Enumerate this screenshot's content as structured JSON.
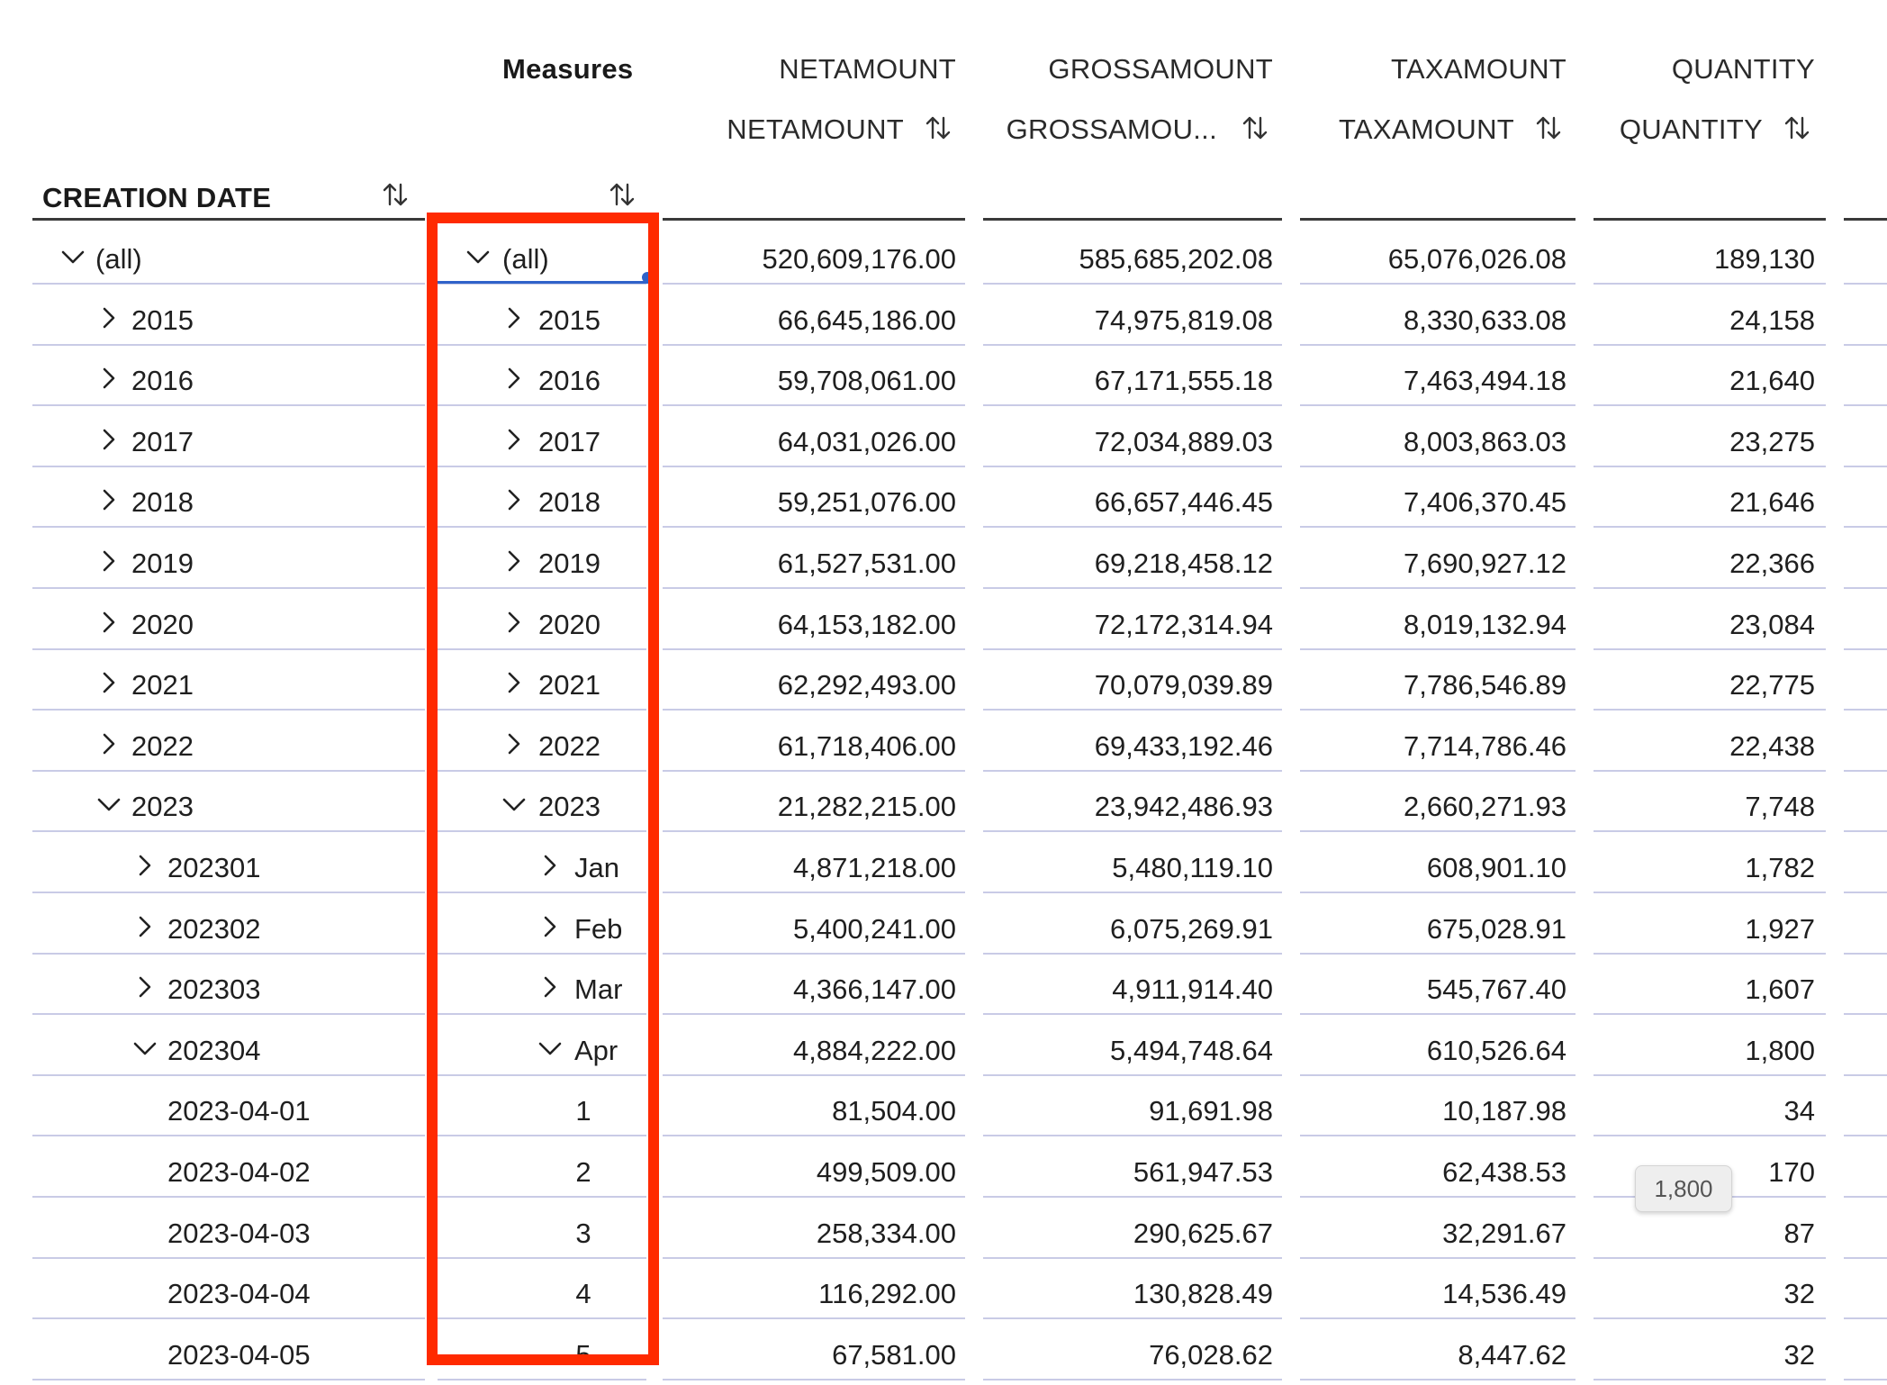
{
  "header": {
    "measures_label": "Measures",
    "creation_date_label": "CREATION DATE",
    "columns": [
      {
        "top": "NETAMOUNT",
        "sub": "NETAMOUNT"
      },
      {
        "top": "GROSSAMOUNT",
        "sub": "GROSSAMOU..."
      },
      {
        "top": "TAXAMOUNT",
        "sub": "TAXAMOUNT"
      },
      {
        "top": "QUANTITY",
        "sub": "QUANTITY"
      }
    ]
  },
  "rows": [
    {
      "date": "(all)",
      "member": "(all)",
      "toggle": "expanded",
      "indent": 0,
      "values": [
        "520,609,176.00",
        "585,685,202.08",
        "65,076,026.08",
        "189,130"
      ]
    },
    {
      "date": "2015",
      "member": "2015",
      "toggle": "collapsed",
      "indent": 1,
      "values": [
        "66,645,186.00",
        "74,975,819.08",
        "8,330,633.08",
        "24,158"
      ]
    },
    {
      "date": "2016",
      "member": "2016",
      "toggle": "collapsed",
      "indent": 1,
      "values": [
        "59,708,061.00",
        "67,171,555.18",
        "7,463,494.18",
        "21,640"
      ]
    },
    {
      "date": "2017",
      "member": "2017",
      "toggle": "collapsed",
      "indent": 1,
      "values": [
        "64,031,026.00",
        "72,034,889.03",
        "8,003,863.03",
        "23,275"
      ]
    },
    {
      "date": "2018",
      "member": "2018",
      "toggle": "collapsed",
      "indent": 1,
      "values": [
        "59,251,076.00",
        "66,657,446.45",
        "7,406,370.45",
        "21,646"
      ]
    },
    {
      "date": "2019",
      "member": "2019",
      "toggle": "collapsed",
      "indent": 1,
      "values": [
        "61,527,531.00",
        "69,218,458.12",
        "7,690,927.12",
        "22,366"
      ]
    },
    {
      "date": "2020",
      "member": "2020",
      "toggle": "collapsed",
      "indent": 1,
      "values": [
        "64,153,182.00",
        "72,172,314.94",
        "8,019,132.94",
        "23,084"
      ]
    },
    {
      "date": "2021",
      "member": "2021",
      "toggle": "collapsed",
      "indent": 1,
      "values": [
        "62,292,493.00",
        "70,079,039.89",
        "7,786,546.89",
        "22,775"
      ]
    },
    {
      "date": "2022",
      "member": "2022",
      "toggle": "collapsed",
      "indent": 1,
      "values": [
        "61,718,406.00",
        "69,433,192.46",
        "7,714,786.46",
        "22,438"
      ]
    },
    {
      "date": "2023",
      "member": "2023",
      "toggle": "expanded",
      "indent": 1,
      "values": [
        "21,282,215.00",
        "23,942,486.93",
        "2,660,271.93",
        "7,748"
      ]
    },
    {
      "date": "202301",
      "member": "Jan",
      "toggle": "collapsed",
      "indent": 2,
      "values": [
        "4,871,218.00",
        "5,480,119.10",
        "608,901.10",
        "1,782"
      ]
    },
    {
      "date": "202302",
      "member": "Feb",
      "toggle": "collapsed",
      "indent": 2,
      "values": [
        "5,400,241.00",
        "6,075,269.91",
        "675,028.91",
        "1,927"
      ]
    },
    {
      "date": "202303",
      "member": "Mar",
      "toggle": "collapsed",
      "indent": 2,
      "values": [
        "4,366,147.00",
        "4,911,914.40",
        "545,767.40",
        "1,607"
      ]
    },
    {
      "date": "202304",
      "member": "Apr",
      "toggle": "expanded",
      "indent": 2,
      "values": [
        "4,884,222.00",
        "5,494,748.64",
        "610,526.64",
        "1,800"
      ]
    },
    {
      "date": "2023-04-01",
      "member": "1",
      "toggle": "none",
      "indent": 3,
      "values": [
        "81,504.00",
        "91,691.98",
        "10,187.98",
        "34"
      ]
    },
    {
      "date": "2023-04-02",
      "member": "2",
      "toggle": "none",
      "indent": 3,
      "values": [
        "499,509.00",
        "561,947.53",
        "62,438.53",
        "170"
      ]
    },
    {
      "date": "2023-04-03",
      "member": "3",
      "toggle": "none",
      "indent": 3,
      "values": [
        "258,334.00",
        "290,625.67",
        "32,291.67",
        "87"
      ]
    },
    {
      "date": "2023-04-04",
      "member": "4",
      "toggle": "none",
      "indent": 3,
      "values": [
        "116,292.00",
        "130,828.49",
        "14,536.49",
        "32"
      ]
    },
    {
      "date": "2023-04-05",
      "member": "5",
      "toggle": "none",
      "indent": 3,
      "values": [
        "67,581.00",
        "76,028.62",
        "8,447.62",
        "32"
      ]
    }
  ],
  "tooltip": {
    "text": "1,800"
  },
  "highlight": {
    "color": "#ff2a00"
  },
  "colors": {
    "row_divider": "#c9cbe6",
    "header_rule": "#3a3a3a",
    "focus": "#2f62c9"
  }
}
